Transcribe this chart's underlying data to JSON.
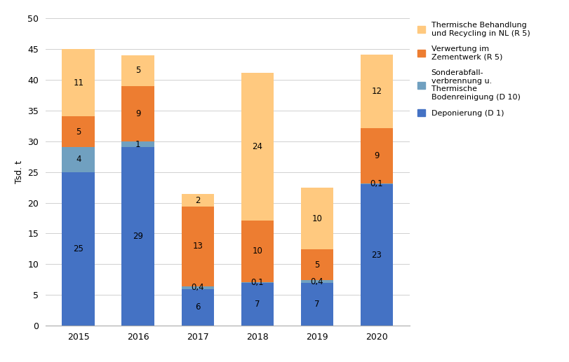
{
  "years": [
    "2015",
    "2016",
    "2017",
    "2018",
    "2019",
    "2020"
  ],
  "deponierung": [
    25,
    29,
    6,
    7,
    7,
    23
  ],
  "sonderabfall": [
    4,
    1,
    0.4,
    0.1,
    0.4,
    0.1
  ],
  "verwertung": [
    5,
    9,
    13,
    10,
    5,
    9
  ],
  "thermische": [
    11,
    5,
    2,
    24,
    10,
    12
  ],
  "colors": {
    "deponierung": "#4472c4",
    "sonderabfall": "#70a0c0",
    "verwertung": "#ed7d31",
    "thermische": "#ffc97f"
  },
  "ylabel": "Tsd. t",
  "ylim": [
    0,
    50
  ],
  "yticks": [
    0,
    5,
    10,
    15,
    20,
    25,
    30,
    35,
    40,
    45,
    50
  ],
  "legend_labels": [
    "Thermische Behandlung\nund Recycling in NL (R 5)",
    "Verwertung im\nZementwerk (R 5)",
    "Sonderabfall-\nverbrennung u.\nThermische\nBodenreinigung (D 10)",
    "Deponierung (D 1)"
  ],
  "background_color": "#ffffff",
  "bar_width": 0.55,
  "figsize": [
    8.11,
    5.17
  ],
  "dpi": 100
}
